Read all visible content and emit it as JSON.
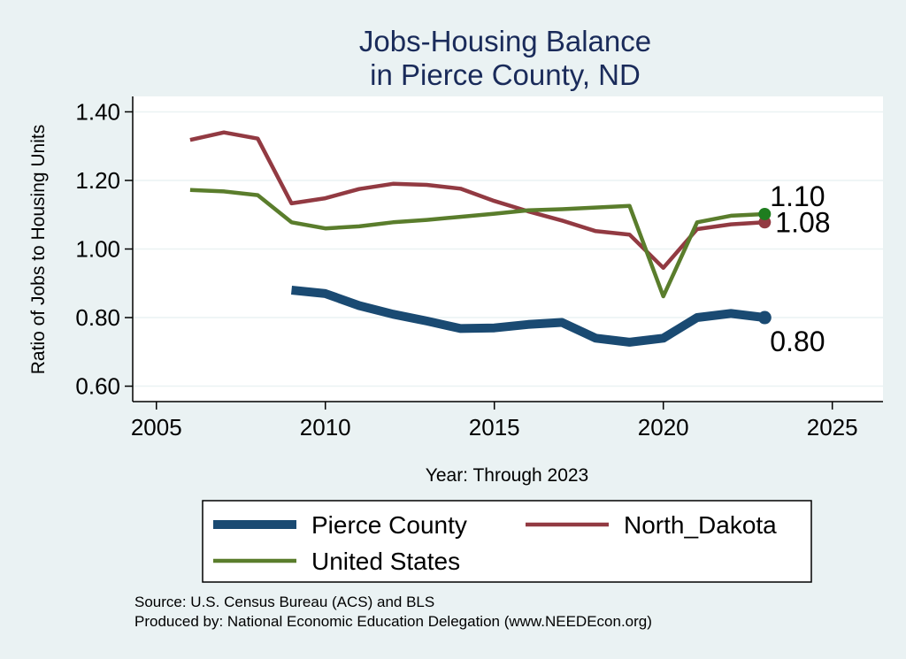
{
  "chart_data": {
    "type": "line",
    "title_lines": [
      "Jobs-Housing Balance",
      "in Pierce County, ND"
    ],
    "xlabel": "Year: Through 2023",
    "ylabel": "Ratio of Jobs to Housing Units",
    "xlim": [
      2004.3,
      2026.5
    ],
    "ylim": [
      0.555,
      1.445
    ],
    "xticks": [
      2005,
      2010,
      2015,
      2020,
      2025
    ],
    "yticks": [
      0.6,
      0.8,
      1.0,
      1.2,
      1.4
    ],
    "ytick_labels": [
      "0.60",
      "0.80",
      "1.00",
      "1.20",
      "1.40"
    ],
    "grid": true,
    "legend_position": "bottom",
    "series": [
      {
        "name": "Pierce County",
        "color": "#1a4a72",
        "x": [
          2009,
          2010,
          2011,
          2012,
          2013,
          2014,
          2015,
          2016,
          2017,
          2018,
          2019,
          2020,
          2021,
          2022,
          2023
        ],
        "y": [
          0.88,
          0.87,
          0.835,
          0.81,
          0.79,
          0.768,
          0.77,
          0.78,
          0.786,
          0.74,
          0.728,
          0.74,
          0.8,
          0.812,
          0.8
        ],
        "end_label": "0.80"
      },
      {
        "name": "North_Dakota",
        "color": "#923a42",
        "x": [
          2006,
          2007,
          2008,
          2009,
          2010,
          2011,
          2012,
          2013,
          2014,
          2015,
          2016,
          2017,
          2018,
          2019,
          2020,
          2021,
          2022,
          2023
        ],
        "y": [
          1.318,
          1.34,
          1.322,
          1.133,
          1.148,
          1.175,
          1.19,
          1.187,
          1.176,
          1.14,
          1.11,
          1.083,
          1.052,
          1.042,
          0.945,
          1.058,
          1.072,
          1.078
        ],
        "end_label": "1.08"
      },
      {
        "name": "United States",
        "color": "#5a7d2c",
        "x": [
          2006,
          2007,
          2008,
          2009,
          2010,
          2011,
          2012,
          2013,
          2014,
          2015,
          2016,
          2017,
          2018,
          2019,
          2020,
          2021,
          2022,
          2023
        ],
        "y": [
          1.172,
          1.168,
          1.157,
          1.078,
          1.06,
          1.066,
          1.078,
          1.085,
          1.094,
          1.103,
          1.113,
          1.116,
          1.121,
          1.126,
          0.862,
          1.078,
          1.097,
          1.102
        ],
        "end_label": "1.10"
      }
    ],
    "source_note": "Source: U.S. Census Bureau (ACS) and BLS",
    "producer_note": "Produced by: National Economic Education Delegation (www.NEEDEcon.org)"
  }
}
